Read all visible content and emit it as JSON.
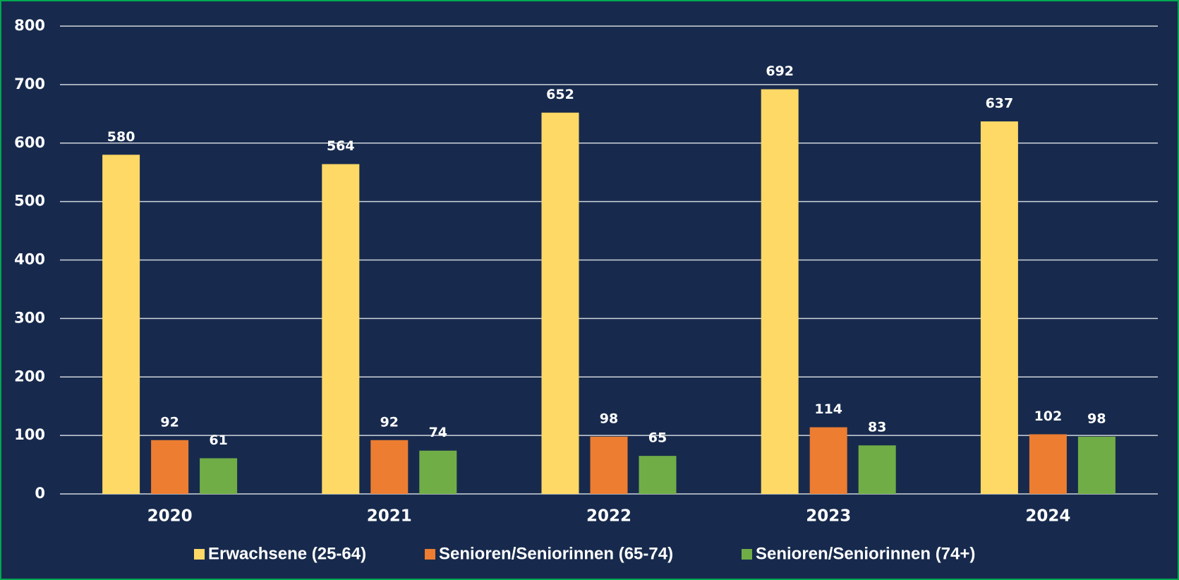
{
  "chart_data": {
    "type": "bar",
    "categories": [
      "2020",
      "2021",
      "2022",
      "2023",
      "2024"
    ],
    "series": [
      {
        "name": "Erwachsene (25-64)",
        "color": "#ffd966",
        "values": [
          580,
          564,
          652,
          692,
          637
        ]
      },
      {
        "name": "Senioren/Seniorinnen (65-74)",
        "color": "#ed7d31",
        "values": [
          92,
          92,
          98,
          114,
          102
        ]
      },
      {
        "name": "Senioren/Seniorinnen (74+)",
        "color": "#70ad47",
        "values": [
          61,
          74,
          65,
          83,
          98
        ]
      }
    ],
    "ylim": [
      0,
      800
    ],
    "yticks": [
      0,
      100,
      200,
      300,
      400,
      500,
      600,
      700,
      800
    ],
    "grid": true,
    "legend": "bottom"
  }
}
